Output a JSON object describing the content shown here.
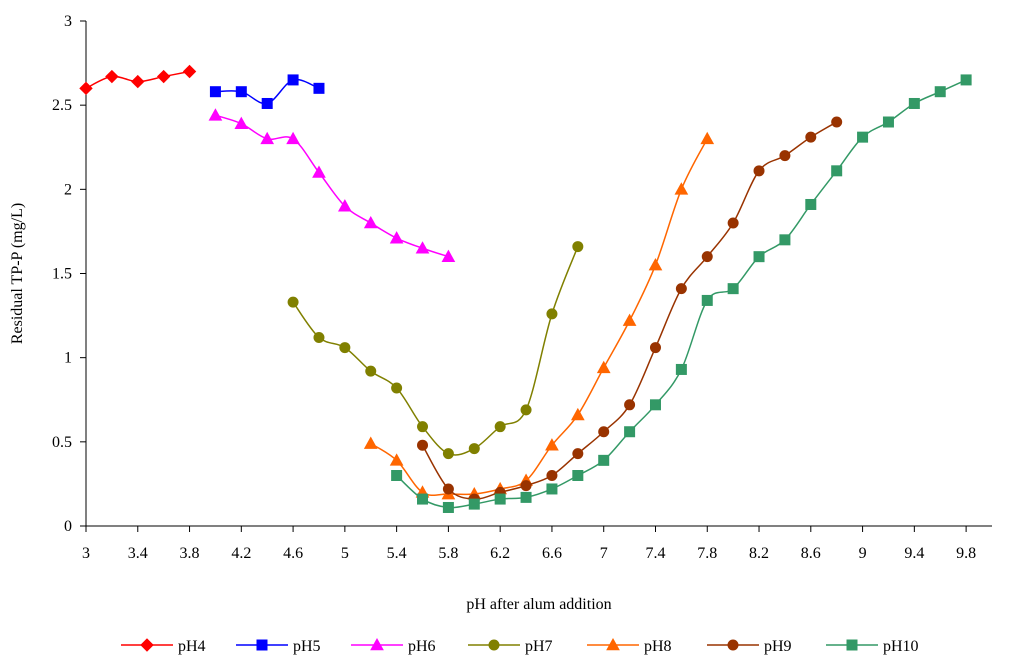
{
  "chart_data": {
    "type": "line",
    "title": "",
    "xlabel": "pH after alum addition",
    "ylabel": "Residual TP-P (mg/L)",
    "xlim": [
      3,
      10
    ],
    "ylim": [
      0,
      3
    ],
    "xticks": [
      "3",
      "3.4",
      "3.8",
      "4.2",
      "4.6",
      "5",
      "5.4",
      "5.8",
      "6.2",
      "6.6",
      "7",
      "7.4",
      "7.8",
      "8.2",
      "8.6",
      "9",
      "9.4",
      "9.8"
    ],
    "xtick_values": [
      3,
      3.4,
      3.8,
      4.2,
      4.6,
      5,
      5.4,
      5.8,
      6.2,
      6.6,
      7,
      7.4,
      7.8,
      8.2,
      8.6,
      9,
      9.4,
      9.8
    ],
    "yticks": [
      "0",
      "0.5",
      "1",
      "1.5",
      "2",
      "2.5",
      "3"
    ],
    "ytick_values": [
      0,
      0.5,
      1,
      1.5,
      2,
      2.5,
      3
    ],
    "grid": false,
    "legend_position": "bottom",
    "series": [
      {
        "name": "pH4",
        "color": "#FF0000",
        "marker": "diamond",
        "x": [
          3.0,
          3.2,
          3.4,
          3.6,
          3.8
        ],
        "y": [
          2.6,
          2.67,
          2.64,
          2.67,
          2.7
        ]
      },
      {
        "name": "pH5",
        "color": "#0000FF",
        "marker": "square",
        "x": [
          4.0,
          4.2,
          4.4,
          4.6,
          4.8
        ],
        "y": [
          2.58,
          2.58,
          2.51,
          2.65,
          2.6
        ]
      },
      {
        "name": "pH6",
        "color": "#FF00FF",
        "marker": "triangle",
        "x": [
          4.0,
          4.2,
          4.4,
          4.6,
          4.8,
          5.0,
          5.2,
          5.4,
          5.6,
          5.8
        ],
        "y": [
          2.44,
          2.39,
          2.3,
          2.3,
          2.1,
          1.9,
          1.8,
          1.71,
          1.65,
          1.6
        ]
      },
      {
        "name": "pH7",
        "color": "#808000",
        "marker": "circle",
        "x": [
          4.6,
          4.8,
          5.0,
          5.2,
          5.4,
          5.6,
          5.8,
          6.0,
          6.2,
          6.4,
          6.6,
          6.8
        ],
        "y": [
          1.33,
          1.12,
          1.06,
          0.92,
          0.82,
          0.59,
          0.43,
          0.46,
          0.59,
          0.69,
          1.26,
          1.66
        ]
      },
      {
        "name": "pH8",
        "color": "#FF6600",
        "marker": "triangle",
        "x": [
          5.2,
          5.4,
          5.6,
          5.8,
          6.0,
          6.2,
          6.4,
          6.6,
          6.8,
          7.0,
          7.2,
          7.4,
          7.6,
          7.8
        ],
        "y": [
          0.49,
          0.39,
          0.2,
          0.19,
          0.19,
          0.22,
          0.27,
          0.48,
          0.66,
          0.94,
          1.22,
          1.55,
          2.0,
          2.3
        ]
      },
      {
        "name": "pH9",
        "color": "#993300",
        "marker": "circle",
        "x": [
          5.6,
          5.8,
          6.0,
          6.2,
          6.4,
          6.6,
          6.8,
          7.0,
          7.2,
          7.4,
          7.6,
          7.8,
          8.0,
          8.2,
          8.4,
          8.6,
          8.8
        ],
        "y": [
          0.48,
          0.22,
          0.16,
          0.2,
          0.24,
          0.3,
          0.43,
          0.56,
          0.72,
          1.06,
          1.41,
          1.6,
          1.8,
          2.11,
          2.2,
          2.31,
          2.4
        ]
      },
      {
        "name": "pH10",
        "color": "#339966",
        "marker": "square",
        "x": [
          5.4,
          5.6,
          5.8,
          6.0,
          6.2,
          6.4,
          6.6,
          6.8,
          7.0,
          7.2,
          7.4,
          7.6,
          7.8,
          8.0,
          8.2,
          8.4,
          8.6,
          8.8,
          9.0,
          9.2,
          9.4,
          9.6,
          9.8
        ],
        "y": [
          0.3,
          0.16,
          0.11,
          0.13,
          0.16,
          0.17,
          0.22,
          0.3,
          0.39,
          0.56,
          0.72,
          0.93,
          1.34,
          1.41,
          1.6,
          1.7,
          1.91,
          2.11,
          2.31,
          2.4,
          2.51,
          2.58,
          2.65
        ]
      }
    ]
  }
}
